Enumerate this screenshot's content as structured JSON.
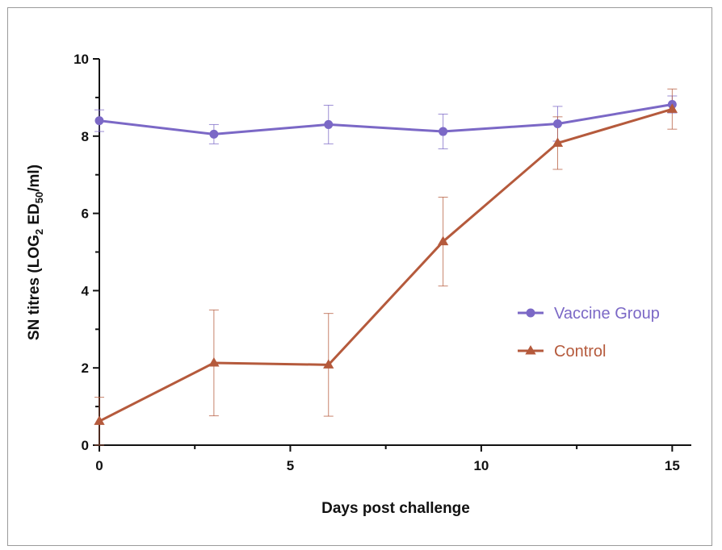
{
  "chart_data": {
    "type": "line",
    "xlabel": "Days post challenge",
    "ylabel": {
      "prefix": "SN titres (LOG",
      "sub1": "2",
      "middle": " ED",
      "sub2": "50",
      "suffix": "/ml)"
    },
    "xlim": [
      0,
      15.5
    ],
    "ylim": [
      0,
      10
    ],
    "xticks": [
      0,
      5,
      10,
      15
    ],
    "yticks": [
      0,
      2,
      4,
      6,
      8,
      10
    ],
    "x": [
      0,
      3,
      6,
      9,
      12,
      15
    ],
    "legend_position": "center-right",
    "grid": false,
    "series": [
      {
        "name": "Vaccine Group",
        "marker": "circle",
        "color": "#7b68c6",
        "values": [
          8.4,
          8.05,
          8.3,
          8.12,
          8.32,
          8.82
        ],
        "errors": [
          0.28,
          0.25,
          0.5,
          0.45,
          0.45,
          0.22
        ]
      },
      {
        "name": "Control",
        "marker": "triangle",
        "color": "#b55a3c",
        "values": [
          0.62,
          2.13,
          2.08,
          5.27,
          7.82,
          8.7
        ],
        "errors": [
          0.62,
          1.37,
          1.33,
          1.15,
          0.68,
          0.52
        ]
      }
    ]
  }
}
